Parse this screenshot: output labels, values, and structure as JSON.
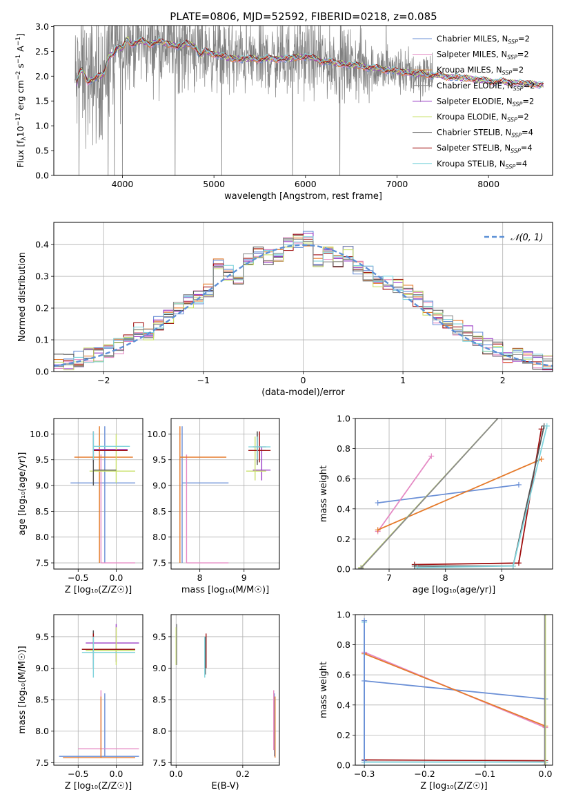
{
  "figure_title": "PLATE=0806, MJD=52592, FIBERID=0218, z=0.085",
  "colors": {
    "Chabrier MILES": "#6a8fd6",
    "Salpeter MILES": "#e58ac4",
    "Kroupa MILES": "#e57a2a",
    "Chabrier ELODIE": "#8a8a8a",
    "Salpeter ELODIE": "#9b3fc6",
    "Kroupa ELODIE": "#c8e06a",
    "Chabrier STELIB": "#555555",
    "Salpeter STELIB": "#a01010",
    "Kroupa STELIB": "#7fd3dc",
    "spectrum": "#808080",
    "normal": "#5b8fd6"
  },
  "chart_data": [
    {
      "id": "spectrum",
      "type": "line",
      "xlabel": "wavelength [Angstrom, rest frame]",
      "ylabel_parts": [
        "Flux [f",
        "λ",
        "10",
        "−17",
        " erg cm",
        "−2",
        " s",
        "−1",
        " A",
        "−1",
        "]"
      ],
      "xlim": [
        3250,
        8700
      ],
      "ylim": [
        0,
        3.02
      ],
      "xticks": [
        4000,
        5000,
        6000,
        7000,
        8000
      ],
      "yticks": [
        0.0,
        0.5,
        1.0,
        1.5,
        2.0,
        2.5,
        3.0
      ],
      "legend_position": "top-right",
      "legend": [
        {
          "label": "Chabrier MILES, N",
          "sub": "SSP",
          "tail": "=2"
        },
        {
          "label": "Salpeter MILES, N",
          "sub": "SSP",
          "tail": "=2"
        },
        {
          "label": "Kroupa MILES, N",
          "sub": "SSP",
          "tail": "=2"
        },
        {
          "label": "Chabrier ELODIE, N",
          "sub": "SSP",
          "tail": "=2"
        },
        {
          "label": "Salpeter ELODIE, N",
          "sub": "SSP",
          "tail": "=2"
        },
        {
          "label": "Kroupa ELODIE, N",
          "sub": "SSP",
          "tail": "=2"
        },
        {
          "label": "Chabrier STELIB, N",
          "sub": "SSP",
          "tail": "=4"
        },
        {
          "label": "Salpeter STELIB, N",
          "sub": "SSP",
          "tail": "=4"
        },
        {
          "label": "Kroupa STELIB, N",
          "sub": "SSP",
          "tail": "=4"
        }
      ],
      "model_curve": {
        "x": [
          3500,
          3550,
          3620,
          3700,
          3800,
          3850,
          3900,
          3950,
          4000,
          4050,
          4100,
          4200,
          4300,
          4400,
          4500,
          4600,
          4700,
          4800,
          4850,
          4900,
          5000,
          5100,
          5200,
          5300,
          5500,
          5800,
          6000,
          6200,
          6400,
          6600,
          6800,
          7000,
          7200,
          7400,
          7600,
          7800,
          8000,
          8200,
          8400,
          8600
        ],
        "y": [
          1.85,
          2.15,
          1.9,
          1.95,
          2.05,
          2.4,
          2.45,
          2.6,
          2.55,
          2.75,
          2.65,
          2.7,
          2.65,
          2.7,
          2.65,
          2.6,
          2.65,
          2.6,
          2.4,
          2.5,
          2.45,
          2.4,
          2.35,
          2.35,
          2.35,
          2.35,
          2.4,
          2.3,
          2.25,
          2.2,
          2.15,
          2.1,
          2.05,
          2.02,
          1.98,
          1.95,
          1.9,
          1.88,
          1.85,
          1.83
        ]
      },
      "spectrum_range": [
        3480,
        7400
      ],
      "spectrum_noise_tiers": [
        {
          "x": [
            3480,
            4000
          ],
          "sigma": 0.8
        },
        {
          "x": [
            4000,
            4900
          ],
          "sigma": 0.55
        },
        {
          "x": [
            4900,
            6700
          ],
          "sigma": 0.45
        },
        {
          "x": [
            6700,
            7400
          ],
          "sigma": 0.3
        }
      ]
    },
    {
      "id": "residual-hist",
      "type": "histogram",
      "xlabel": "(data-model)/error",
      "ylabel": "Normed distribution",
      "xlim": [
        -2.5,
        2.5
      ],
      "ylim": [
        0,
        0.47
      ],
      "xticks": [
        -2,
        -1,
        0,
        1,
        2
      ],
      "yticks": [
        0.0,
        0.1,
        0.2,
        0.3,
        0.4
      ],
      "grid": true,
      "legend": "𝒩(0, 1)",
      "bin_edges": [
        -2.5,
        -2.4,
        -2.3,
        -2.2,
        -2.1,
        -2.0,
        -1.9,
        -1.8,
        -1.7,
        -1.6,
        -1.5,
        -1.4,
        -1.3,
        -1.2,
        -1.1,
        -1.0,
        -0.9,
        -0.8,
        -0.7,
        -0.6,
        -0.5,
        -0.4,
        -0.3,
        -0.2,
        -0.1,
        0.0,
        0.1,
        0.2,
        0.3,
        0.4,
        0.5,
        0.6,
        0.7,
        0.8,
        0.9,
        1.0,
        1.1,
        1.2,
        1.3,
        1.4,
        1.5,
        1.6,
        1.7,
        1.8,
        1.9,
        2.0,
        2.1,
        2.2,
        2.3,
        2.4,
        2.5
      ],
      "values": [
        0.03,
        0.03,
        0.04,
        0.05,
        0.05,
        0.06,
        0.08,
        0.1,
        0.13,
        0.12,
        0.15,
        0.17,
        0.2,
        0.22,
        0.23,
        0.26,
        0.34,
        0.31,
        0.29,
        0.36,
        0.38,
        0.36,
        0.37,
        0.4,
        0.41,
        0.42,
        0.35,
        0.37,
        0.35,
        0.37,
        0.33,
        0.31,
        0.29,
        0.28,
        0.27,
        0.25,
        0.23,
        0.2,
        0.17,
        0.16,
        0.14,
        0.12,
        0.1,
        0.08,
        0.07,
        0.05,
        0.05,
        0.04,
        0.03,
        0.03
      ],
      "spread": 0.025,
      "normal_curve": {
        "mu": 0,
        "sigma": 1
      }
    },
    {
      "id": "age-vs-z",
      "type": "errorbar",
      "xlabel": "Z [log₁₀(Z/Z☉)]",
      "ylabel": "age  [log₁₀(age/yr)]",
      "xlim": [
        -0.82,
        0.35
      ],
      "ylim": [
        7.38,
        10.3
      ],
      "xticks": [
        -0.5,
        0.0
      ],
      "yticks": [
        7.5,
        8.0,
        8.5,
        9.0,
        9.5,
        10.0
      ],
      "grid": true,
      "bars": [
        {
          "m": "Chabrier MILES",
          "x": -0.15,
          "y": 9.05,
          "xl": -0.6,
          "xh": 0.25,
          "yl": 7.5,
          "yh": 10.15
        },
        {
          "m": "Salpeter MILES",
          "x": -0.2,
          "y": 7.5,
          "xl": -0.2,
          "xh": 0.25,
          "yl": 7.5,
          "yh": 9.6
        },
        {
          "m": "Kroupa MILES",
          "x": -0.22,
          "y": 9.55,
          "xl": -0.55,
          "xh": 0.22,
          "yl": 7.5,
          "yh": 10.15
        },
        {
          "m": "Chabrier ELODIE",
          "x": -0.3,
          "y": 9.7,
          "xl": -0.3,
          "xh": 0.0,
          "yl": 9.45,
          "yh": 10.05
        },
        {
          "m": "Salpeter ELODIE",
          "x": -0.3,
          "y": 9.7,
          "xl": -0.3,
          "xh": 0.15,
          "yl": 9.45,
          "yh": 10.05
        },
        {
          "m": "Kroupa ELODIE",
          "x": 0.0,
          "y": 9.28,
          "xl": -0.35,
          "xh": 0.25,
          "yl": 9.05,
          "yh": 10.0
        },
        {
          "m": "Chabrier STELIB",
          "x": -0.3,
          "y": 9.3,
          "xl": -0.3,
          "xh": 0.0,
          "yl": 9.0,
          "yh": 9.7
        },
        {
          "m": "Salpeter STELIB",
          "x": -0.3,
          "y": 9.68,
          "xl": -0.3,
          "xh": 0.15,
          "yl": 9.5,
          "yh": 10.05
        },
        {
          "m": "Kroupa STELIB",
          "x": -0.3,
          "y": 9.76,
          "xl": -0.3,
          "xh": 0.18,
          "yl": 9.5,
          "yh": 10.05
        }
      ]
    },
    {
      "id": "age-vs-mass",
      "type": "errorbar",
      "xlabel": "mass [log₁₀(M/M☉)]",
      "ylabel": "",
      "xlim": [
        7.35,
        9.8
      ],
      "ylim": [
        7.38,
        10.3
      ],
      "xticks": [
        8,
        9
      ],
      "yticks": [
        7.5,
        8.0,
        8.5,
        9.0,
        9.5,
        10.0
      ],
      "grid": true,
      "bars": [
        {
          "m": "Chabrier MILES",
          "x": 7.6,
          "y": 9.05,
          "xl": 7.6,
          "xh": 8.65,
          "yl": 7.5,
          "yh": 10.15
        },
        {
          "m": "Salpeter MILES",
          "x": 7.7,
          "y": 7.5,
          "xl": 7.7,
          "xh": 8.65,
          "yl": 7.5,
          "yh": 9.6
        },
        {
          "m": "Kroupa MILES",
          "x": 7.55,
          "y": 9.55,
          "xl": 7.55,
          "xh": 8.6,
          "yl": 7.5,
          "yh": 10.15
        },
        {
          "m": "Chabrier ELODIE",
          "x": 9.3,
          "y": 9.75,
          "xl": 9.2,
          "xh": 9.5,
          "yl": 9.45,
          "yh": 10.05
        },
        {
          "m": "Salpeter ELODIE",
          "x": 9.4,
          "y": 9.3,
          "xl": 9.2,
          "xh": 9.6,
          "yl": 9.1,
          "yh": 9.75
        },
        {
          "m": "Kroupa ELODIE",
          "x": 9.25,
          "y": 9.28,
          "xl": 9.05,
          "xh": 9.5,
          "yl": 9.1,
          "yh": 9.95
        },
        {
          "m": "Chabrier STELIB",
          "x": 9.3,
          "y": 9.68,
          "xl": 9.1,
          "xh": 9.5,
          "yl": 9.4,
          "yh": 10.05
        },
        {
          "m": "Salpeter STELIB",
          "x": 9.35,
          "y": 9.68,
          "xl": 9.1,
          "xh": 9.6,
          "yl": 9.45,
          "yh": 10.05
        },
        {
          "m": "Kroupa STELIB",
          "x": 9.3,
          "y": 9.75,
          "xl": 9.1,
          "xh": 9.6,
          "yl": 9.5,
          "yh": 9.95
        }
      ]
    },
    {
      "id": "weight-vs-age",
      "type": "line",
      "xlabel": "age  [log₁₀(age/yr)]",
      "ylabel": "mass weight",
      "xlim": [
        6.4,
        9.9
      ],
      "ylim": [
        0,
        1.0
      ],
      "xticks": [
        7,
        8,
        9
      ],
      "yticks": [
        0.0,
        0.2,
        0.4,
        0.6,
        0.8,
        1.0
      ],
      "grid": true,
      "series": [
        {
          "m": "Chabrier MILES",
          "x": [
            6.8,
            9.3
          ],
          "y": [
            0.44,
            0.56
          ]
        },
        {
          "m": "Salpeter MILES",
          "x": [
            6.8,
            7.75
          ],
          "y": [
            0.25,
            0.75
          ]
        },
        {
          "m": "Kroupa MILES",
          "x": [
            6.8,
            9.7
          ],
          "y": [
            0.26,
            0.73
          ]
        },
        {
          "m": "Kroupa ELODIE",
          "x": [
            6.5,
            9.05
          ],
          "y": [
            0.01,
            1.05
          ]
        },
        {
          "m": "Chabrier ELODIE",
          "x": [
            6.5,
            9.05
          ],
          "y": [
            0.005,
            1.05
          ]
        },
        {
          "m": "Salpeter STELIB",
          "x": [
            7.45,
            9.3,
            9.7
          ],
          "y": [
            0.03,
            0.04,
            0.93
          ]
        },
        {
          "m": "Chabrier STELIB",
          "x": [
            7.45,
            9.2,
            9.75
          ],
          "y": [
            0.02,
            0.02,
            0.95
          ]
        },
        {
          "m": "Kroupa STELIB",
          "x": [
            7.5,
            9.2,
            9.8
          ],
          "y": [
            0.01,
            0.02,
            0.95
          ]
        }
      ]
    },
    {
      "id": "mass-vs-z",
      "type": "errorbar",
      "xlabel": "Z [log₁₀(Z/Z☉)]",
      "ylabel": "mass [log₁₀(M/M☉)]",
      "xlim": [
        -0.82,
        0.35
      ],
      "ylim": [
        7.46,
        9.85
      ],
      "xticks": [
        -0.5,
        0.0
      ],
      "yticks": [
        7.5,
        8.0,
        8.5,
        9.0,
        9.5
      ],
      "grid": true,
      "bars": [
        {
          "m": "Chabrier MILES",
          "x": -0.15,
          "y": 7.6,
          "xl": -0.75,
          "xh": 0.3,
          "yl": 7.6,
          "yh": 8.6
        },
        {
          "m": "Salpeter MILES",
          "x": -0.2,
          "y": 7.72,
          "xl": -0.5,
          "xh": 0.3,
          "yl": 7.6,
          "yh": 8.65
        },
        {
          "m": "Kroupa MILES",
          "x": -0.2,
          "y": 7.58,
          "xl": -0.7,
          "xh": 0.25,
          "yl": 7.58,
          "yh": 8.55
        },
        {
          "m": "Chabrier ELODIE",
          "x": -0.3,
          "y": 9.3,
          "xl": -0.3,
          "xh": 0.2,
          "yl": 9.0,
          "yh": 9.6
        },
        {
          "m": "Salpeter ELODIE",
          "x": 0.0,
          "y": 9.4,
          "xl": -0.4,
          "xh": 0.3,
          "yl": 9.1,
          "yh": 9.7
        },
        {
          "m": "Kroupa ELODIE",
          "x": 0.0,
          "y": 9.28,
          "xl": -0.4,
          "xh": 0.25,
          "yl": 9.05,
          "yh": 9.65
        },
        {
          "m": "Chabrier STELIB",
          "x": -0.3,
          "y": 9.3,
          "xl": -0.45,
          "xh": 0.25,
          "yl": 9.0,
          "yh": 9.6
        },
        {
          "m": "Salpeter STELIB",
          "x": -0.3,
          "y": 9.3,
          "xl": -0.45,
          "xh": 0.25,
          "yl": 9.15,
          "yh": 9.55
        },
        {
          "m": "Kroupa STELIB",
          "x": -0.3,
          "y": 9.25,
          "xl": -0.45,
          "xh": 0.25,
          "yl": 8.85,
          "yh": 9.5
        }
      ]
    },
    {
      "id": "mass-vs-ebv",
      "type": "errorbar",
      "xlabel": "E(B-V)",
      "ylabel": "",
      "xlim": [
        -0.015,
        0.31
      ],
      "ylim": [
        7.46,
        9.85
      ],
      "xticks": [
        0.0,
        0.2
      ],
      "yticks": [
        7.5,
        8.0,
        8.5,
        9.0,
        9.5
      ],
      "grid": true,
      "bars": [
        {
          "m": "Chabrier MILES",
          "x": 0.295,
          "y": 8.1,
          "xl": 0.295,
          "xh": 0.295,
          "yl": 7.6,
          "yh": 8.6
        },
        {
          "m": "Salpeter MILES",
          "x": 0.293,
          "y": 8.2,
          "xl": 0.293,
          "xh": 0.293,
          "yl": 7.7,
          "yh": 8.65
        },
        {
          "m": "Kroupa MILES",
          "x": 0.297,
          "y": 8.05,
          "xl": 0.297,
          "xh": 0.297,
          "yl": 7.58,
          "yh": 8.55
        },
        {
          "m": "Kroupa ELODIE",
          "x": 0.0,
          "y": 9.35,
          "xl": 0.0,
          "xh": 0.0,
          "yl": 9.05,
          "yh": 9.65
        },
        {
          "m": "Chabrier ELODIE",
          "x": 0.002,
          "y": 9.35,
          "xl": 0.002,
          "xh": 0.002,
          "yl": 9.05,
          "yh": 9.7
        },
        {
          "m": "Salpeter STELIB",
          "x": 0.09,
          "y": 9.3,
          "xl": 0.09,
          "xh": 0.09,
          "yl": 9.0,
          "yh": 9.55
        },
        {
          "m": "Chabrier STELIB",
          "x": 0.088,
          "y": 9.25,
          "xl": 0.088,
          "xh": 0.088,
          "yl": 8.9,
          "yh": 9.5
        },
        {
          "m": "Kroupa STELIB",
          "x": 0.086,
          "y": 9.2,
          "xl": 0.086,
          "xh": 0.086,
          "yl": 8.85,
          "yh": 9.5
        }
      ]
    },
    {
      "id": "weight-vs-z",
      "type": "line",
      "xlabel": "Z [log₁₀(Z/Z☉)]",
      "ylabel": "mass weight",
      "xlim": [
        -0.315,
        0.012
      ],
      "ylim": [
        0,
        1.0
      ],
      "xticks": [
        -0.3,
        -0.2,
        -0.1,
        0.0
      ],
      "yticks": [
        0.0,
        0.2,
        0.4,
        0.6,
        0.8,
        1.0
      ],
      "grid": true,
      "series": [
        {
          "m": "Chabrier MILES",
          "x": [
            -0.3,
            0.0
          ],
          "y": [
            0.56,
            0.44
          ]
        },
        {
          "m": "Salpeter MILES",
          "x": [
            -0.3,
            0.0
          ],
          "y": [
            0.75,
            0.25
          ]
        },
        {
          "m": "Kroupa MILES",
          "x": [
            -0.3,
            0.0
          ],
          "y": [
            0.74,
            0.26
          ]
        },
        {
          "m": "Salpeter STELIB",
          "x": [
            -0.3,
            0.0
          ],
          "y": [
            0.035,
            0.03
          ]
        },
        {
          "m": "Chabrier STELIB",
          "x": [
            -0.3,
            0.0
          ],
          "y": [
            0.02,
            0.02
          ]
        },
        {
          "m": "Kroupa STELIB",
          "x": [
            -0.3,
            -0.3,
            0.0
          ],
          "y": [
            0.95,
            0.02,
            0.02
          ]
        },
        {
          "m": "Kroupa ELODIE",
          "x": [
            0.0,
            0.0
          ],
          "y": [
            0.0,
            1.0
          ]
        },
        {
          "m": "Chabrier ELODIE",
          "x": [
            -0.001,
            -0.001
          ],
          "y": [
            0.0,
            1.0
          ]
        },
        {
          "m": "Chabrier MILES",
          "x": [
            -0.3,
            -0.3
          ],
          "y": [
            0.03,
            0.96
          ]
        }
      ]
    }
  ]
}
